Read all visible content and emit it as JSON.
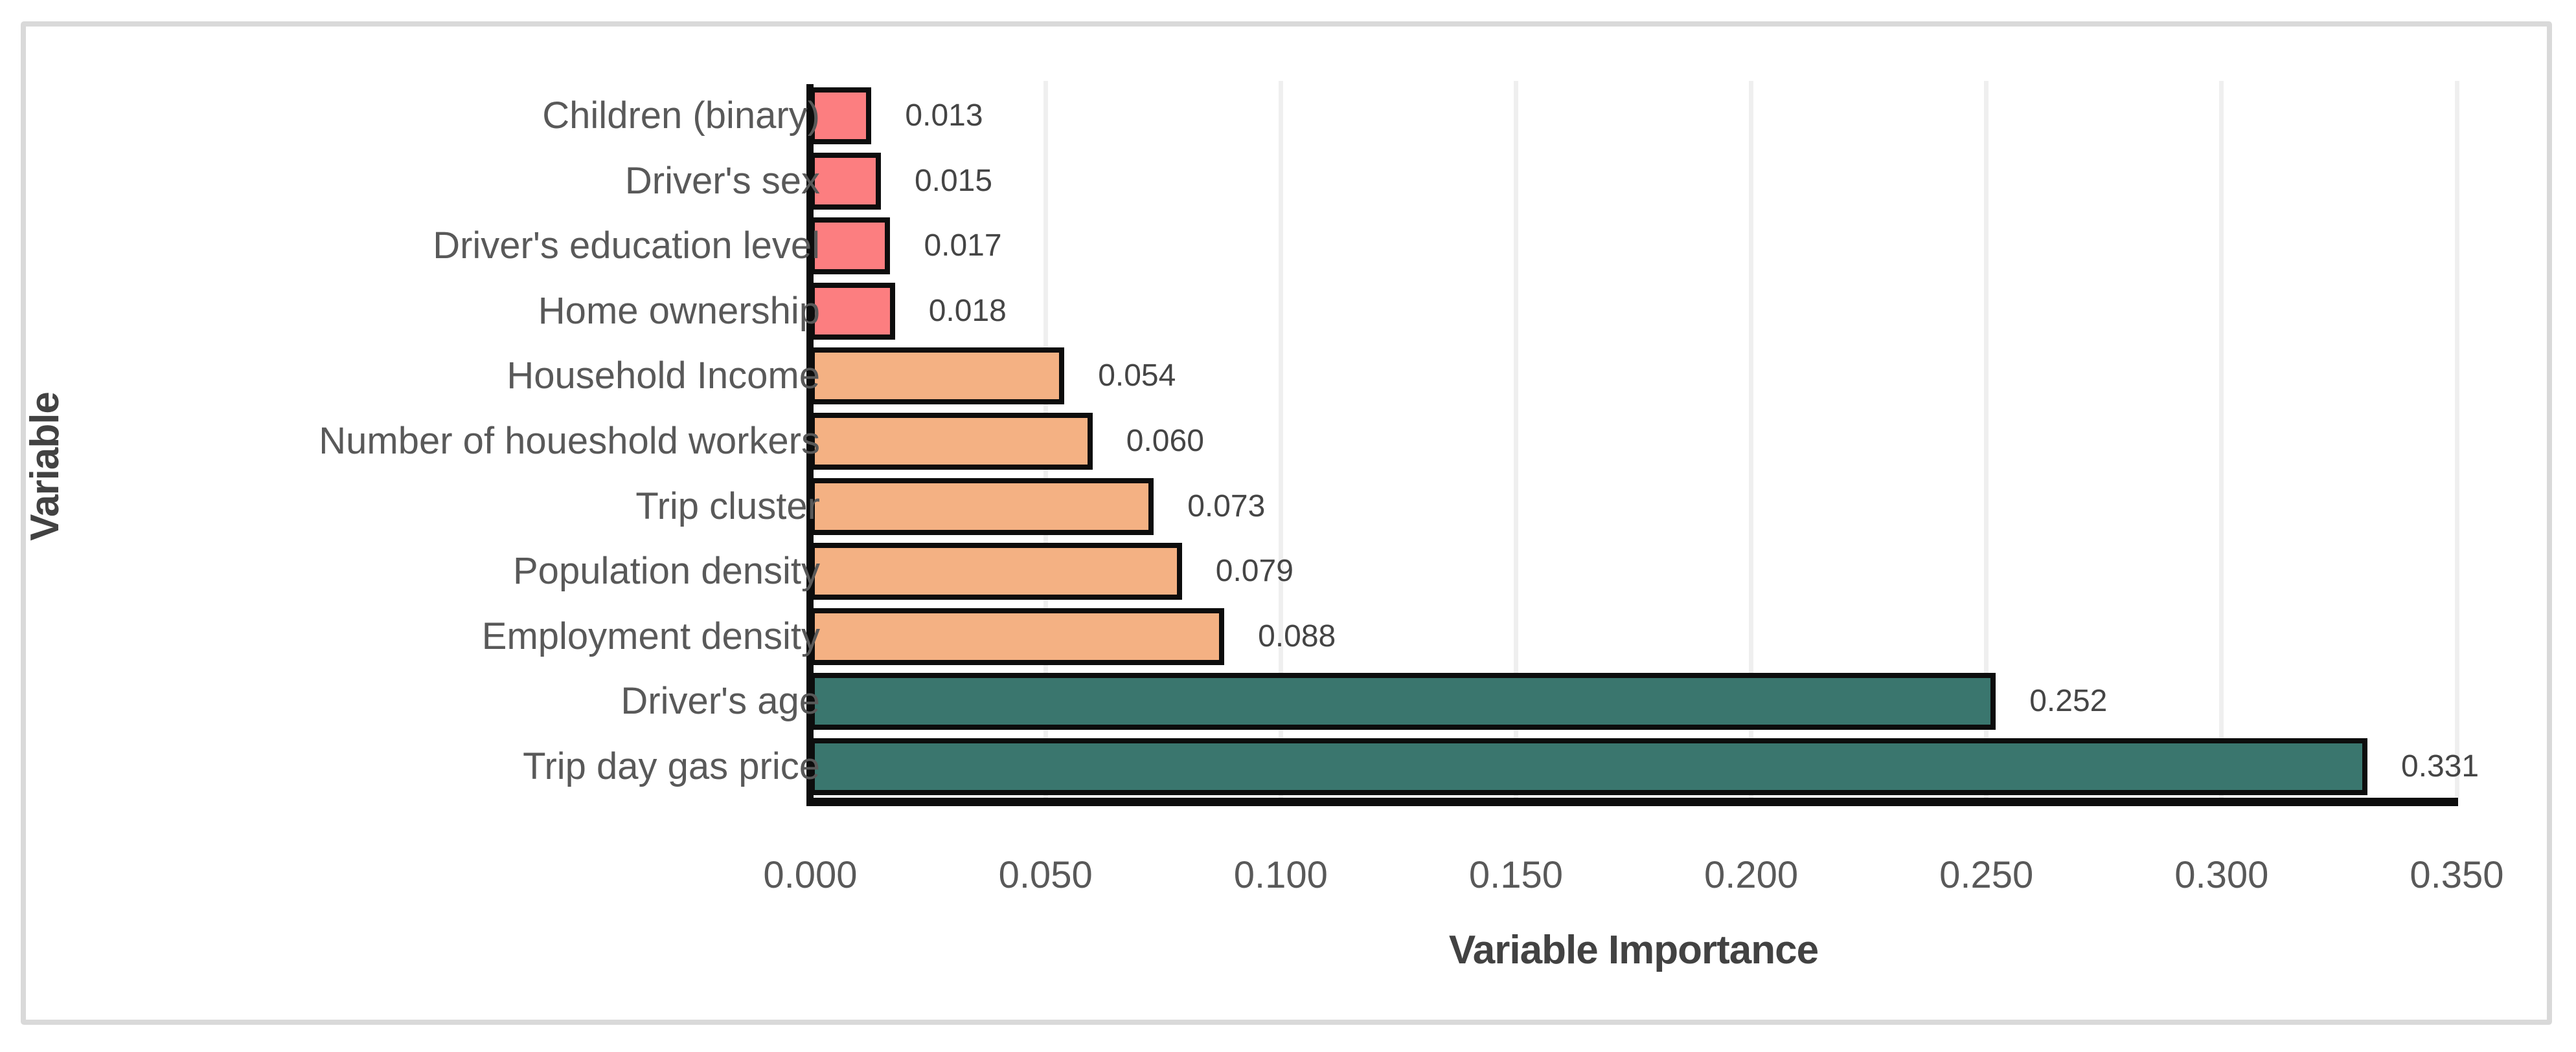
{
  "chart_data": {
    "type": "bar",
    "orientation": "horizontal",
    "title": "",
    "xlabel": "Variable Importance",
    "ylabel": "Variable",
    "categories": [
      "Children (binary)",
      "Driver's sex",
      "Driver's education level",
      "Home ownership",
      "Household Income",
      "Number of houeshold workers",
      "Trip cluster",
      "Population density",
      "Employment density",
      "Driver's age",
      "Trip day gas price"
    ],
    "values": [
      0.013,
      0.015,
      0.017,
      0.018,
      0.054,
      0.06,
      0.073,
      0.079,
      0.088,
      0.252,
      0.331
    ],
    "value_labels": [
      "0.013",
      "0.015",
      "0.017",
      "0.018",
      "0.054",
      "0.060",
      "0.073",
      "0.079",
      "0.088",
      "0.252",
      "0.331"
    ],
    "bar_groups": [
      "pink",
      "pink",
      "pink",
      "pink",
      "orange",
      "orange",
      "orange",
      "orange",
      "orange",
      "teal",
      "teal"
    ],
    "xlim": [
      0,
      0.35
    ],
    "xticks": {
      "values": [
        0.0,
        0.05,
        0.1,
        0.15,
        0.2,
        0.25,
        0.3,
        0.35
      ],
      "labels": [
        "0.000",
        "0.050",
        "0.100",
        "0.150",
        "0.200",
        "0.250",
        "0.300",
        "0.350"
      ]
    },
    "grid": "vertical-only",
    "legend": "none",
    "colors": {
      "pink": "#FC7E80",
      "orange": "#F4B183",
      "teal": "#3A766E",
      "bar_outline": "#0D0D0D",
      "axis_line": "#0D0D0D",
      "gridline": "#EFEFEF",
      "frame_border": "#D9D9D9",
      "background": "#FFFFFF",
      "tick_text": "#595959",
      "category_text": "#595959",
      "value_text": "#454545",
      "title_text": "#424242"
    }
  }
}
